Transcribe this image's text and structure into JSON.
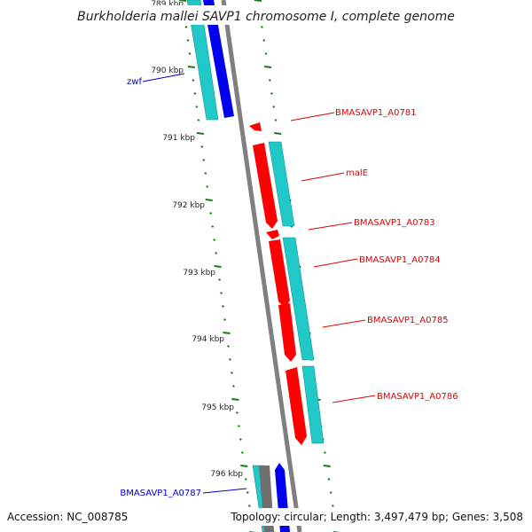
{
  "title": "Burkholderia mallei SAVP1 chromosome I, complete genome",
  "accession": "Accession: NC_008785",
  "summary": "Topology: circular; Length: 3,497,479 bp; Genes: 3,508",
  "colors": {
    "backbone": "#808080",
    "tick": "#1a7a1a",
    "gene_red": "#ff0000",
    "gene_blue": "#0000ee",
    "gene_gray": "#707070",
    "cds": "#20c8c8",
    "label_red": "#dd0000",
    "label_blue": "#0000cc"
  },
  "ruler_labels": [
    "789 kbp",
    "790 kbp",
    "791 kbp",
    "792 kbp",
    "793 kbp",
    "794 kbp",
    "795 kbp",
    "796 kbp"
  ],
  "gene_labels": [
    {
      "text": "zwf",
      "color": "blue"
    },
    {
      "text": "BMASAVP1_A0781",
      "color": "red"
    },
    {
      "text": "malE",
      "color": "red"
    },
    {
      "text": "BMASAVP1_A0783",
      "color": "red"
    },
    {
      "text": "BMASAVP1_A0784",
      "color": "red"
    },
    {
      "text": "BMASAVP1_A0785",
      "color": "red"
    },
    {
      "text": "BMASAVP1_A0786",
      "color": "red"
    },
    {
      "text": "BMASAVP1_A0787",
      "color": "blue"
    }
  ]
}
